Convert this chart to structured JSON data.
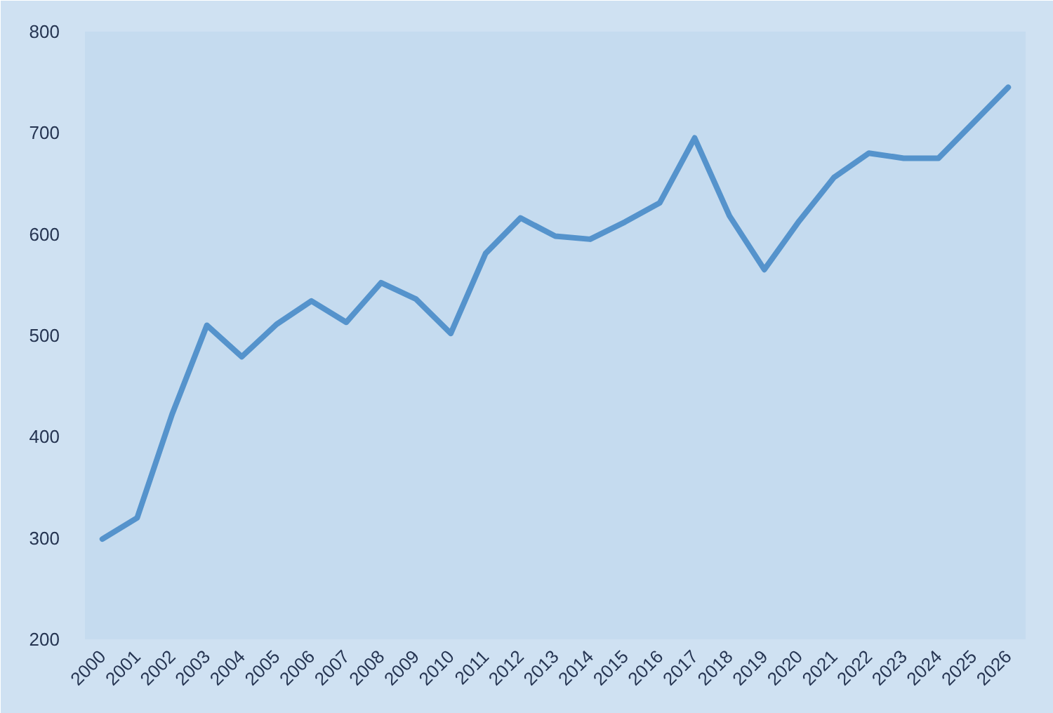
{
  "chart_data": {
    "type": "line",
    "categories": [
      "2000",
      "2001",
      "2002",
      "2003",
      "2004",
      "2005",
      "2006",
      "2007",
      "2008",
      "2009",
      "2010",
      "2011",
      "2012",
      "2013",
      "2014",
      "2015",
      "2016",
      "2017",
      "2018",
      "2019",
      "2020",
      "2021",
      "2022",
      "2023",
      "2024",
      "2025",
      "2026"
    ],
    "series": [
      {
        "color": "#5593cc",
        "values": [
          299,
          320,
          422,
          510,
          479,
          511,
          534,
          513,
          552,
          536,
          502,
          581,
          616,
          598,
          595,
          612,
          631,
          695,
          618,
          565,
          613,
          656,
          680,
          675,
          675,
          710,
          745
        ]
      }
    ],
    "ylim": [
      200,
      800
    ],
    "yticks": [
      200,
      300,
      400,
      500,
      600,
      700,
      800
    ],
    "grid": false,
    "line_style": "solid"
  }
}
